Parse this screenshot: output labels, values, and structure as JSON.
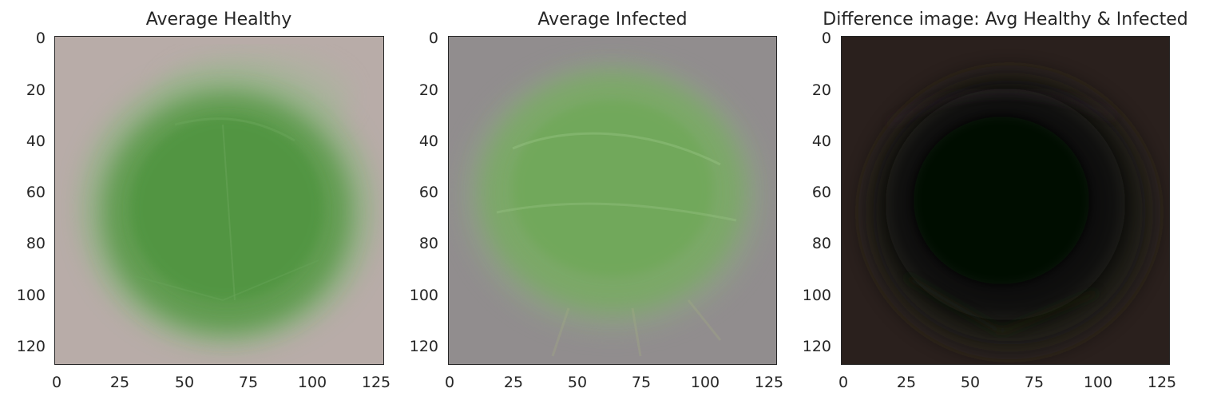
{
  "figure": {
    "panels": [
      {
        "id": "healthy",
        "title": "Average Healthy",
        "image_description": "average healthy leaf",
        "background_color": "#b8aca8",
        "leaf_color": "#5a9a48"
      },
      {
        "id": "infected",
        "title": "Average Infected",
        "image_description": "average infected leaf",
        "background_color": "#918d8e",
        "leaf_color": "#78ab62"
      },
      {
        "id": "difference",
        "title": "Difference image: Avg Healthy & Infected",
        "image_description": "difference between healthy and infected averages",
        "background_color": "#2a201d",
        "leaf_color": "#050806"
      }
    ],
    "x_ticks": [
      "0",
      "25",
      "50",
      "75",
      "100",
      "125"
    ],
    "y_ticks": [
      "0",
      "20",
      "40",
      "60",
      "80",
      "100",
      "120"
    ],
    "x_range": [
      0,
      127
    ],
    "y_range": [
      0,
      127
    ]
  }
}
